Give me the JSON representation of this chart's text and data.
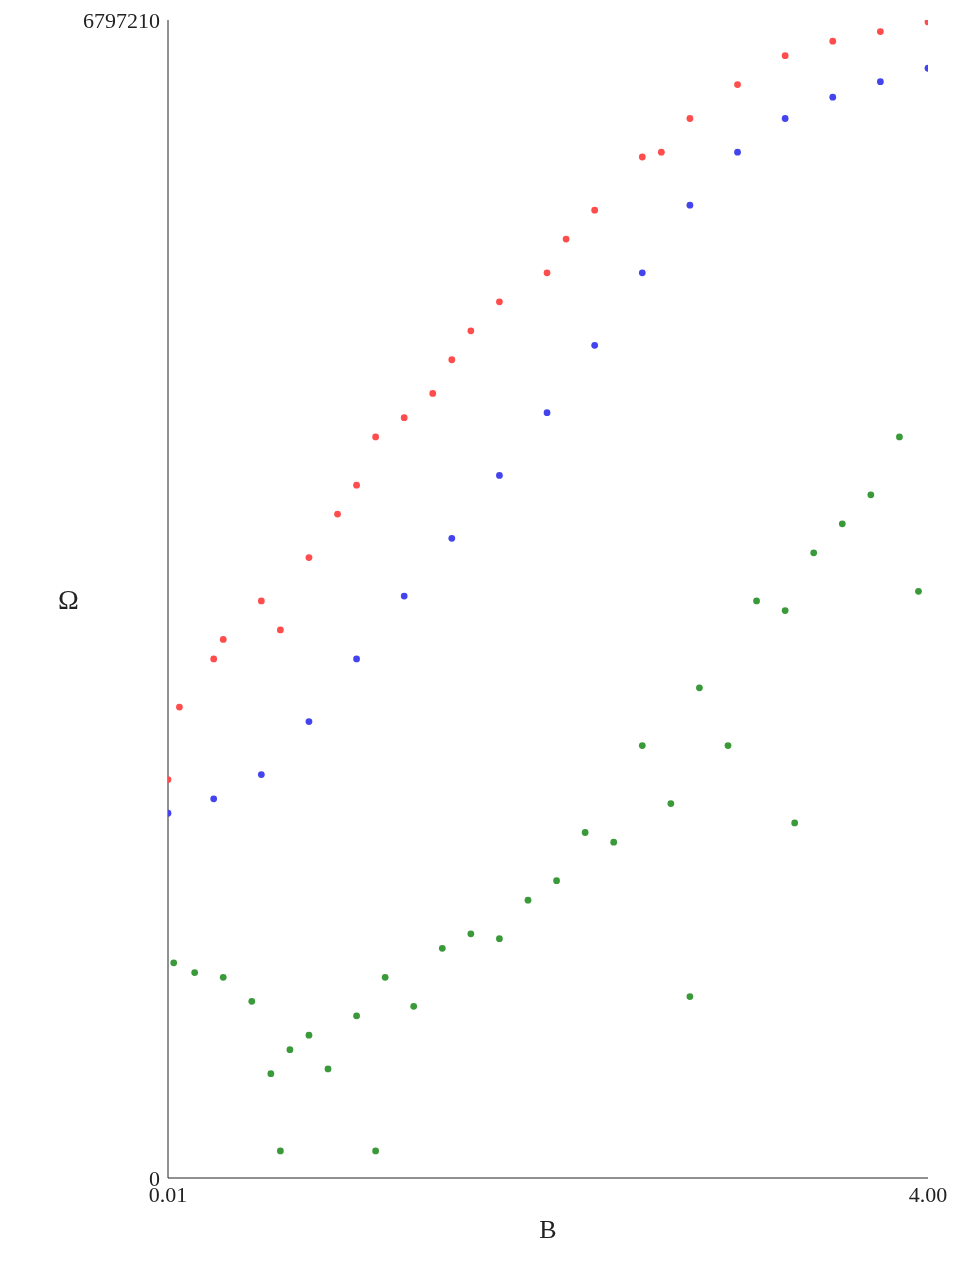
{
  "chart_data": {
    "type": "scatter",
    "xlabel": "B",
    "ylabel": "Ω",
    "xlim": [
      0.01,
      4
    ],
    "ylim": [
      0,
      6797210
    ],
    "xticks": [
      0.01,
      {
        "value": 4,
        "label": "4.00"
      }
    ],
    "yticks": [
      0,
      6797210
    ],
    "marker": "circle",
    "grid": false,
    "series": [
      {
        "color": "#ff4d4d",
        "x": [
          0.01,
          0.07,
          0.25,
          0.3,
          0.5,
          0.6,
          0.75,
          0.9,
          1.0,
          1.1,
          1.25,
          1.4,
          1.5,
          1.6,
          1.75,
          2.0,
          2.1,
          2.25,
          2.5,
          2.6,
          2.75,
          3.0,
          3.25,
          3.5,
          3.75,
          4.0
        ],
        "values": [
          2339000,
          2764000,
          3047000,
          3161000,
          3387000,
          3217000,
          3642000,
          3897000,
          4067000,
          4350000,
          4463000,
          4605000,
          4803000,
          4973000,
          5143000,
          5313000,
          5511000,
          5681000,
          5993000,
          6021000,
          6219000,
          6418000,
          6588000,
          6673000,
          6729000,
          6786000
        ]
      },
      {
        "color": "#4444ee",
        "x": [
          0.01,
          0.25,
          0.5,
          0.75,
          1.0,
          1.25,
          1.5,
          1.75,
          2.0,
          2.25,
          2.5,
          2.75,
          3.0,
          3.25,
          3.5,
          3.75,
          4.0
        ],
        "values": [
          2141000,
          2226000,
          2368000,
          2679000,
          3047000,
          3416000,
          3755000,
          4124000,
          4492000,
          4888000,
          5313000,
          5710000,
          6021000,
          6219000,
          6344000,
          6435000,
          6514000
        ]
      },
      {
        "color": "#3a9a3a",
        "x": [
          0.04,
          0.15,
          0.3,
          0.45,
          0.55,
          0.6,
          0.65,
          0.75,
          0.85,
          1.0,
          1.1,
          1.15,
          1.3,
          1.45,
          1.6,
          1.75,
          1.9,
          2.05,
          2.2,
          2.35,
          2.5,
          2.65,
          2.75,
          2.8,
          2.95,
          3.1,
          3.25,
          3.3,
          3.4,
          3.55,
          3.7,
          3.85,
          3.95
        ],
        "values": [
          1263000,
          1206000,
          1178000,
          1037000,
          612000,
          159000,
          753000,
          838000,
          640000,
          952000,
          159000,
          1178000,
          1008000,
          1348000,
          1433000,
          1405000,
          1631000,
          1745000,
          2028000,
          1971000,
          2538000,
          2198000,
          1065000,
          2877000,
          2538000,
          3387000,
          3331000,
          2084000,
          3670000,
          3840000,
          4010000,
          4350000,
          3444000
        ]
      }
    ]
  }
}
